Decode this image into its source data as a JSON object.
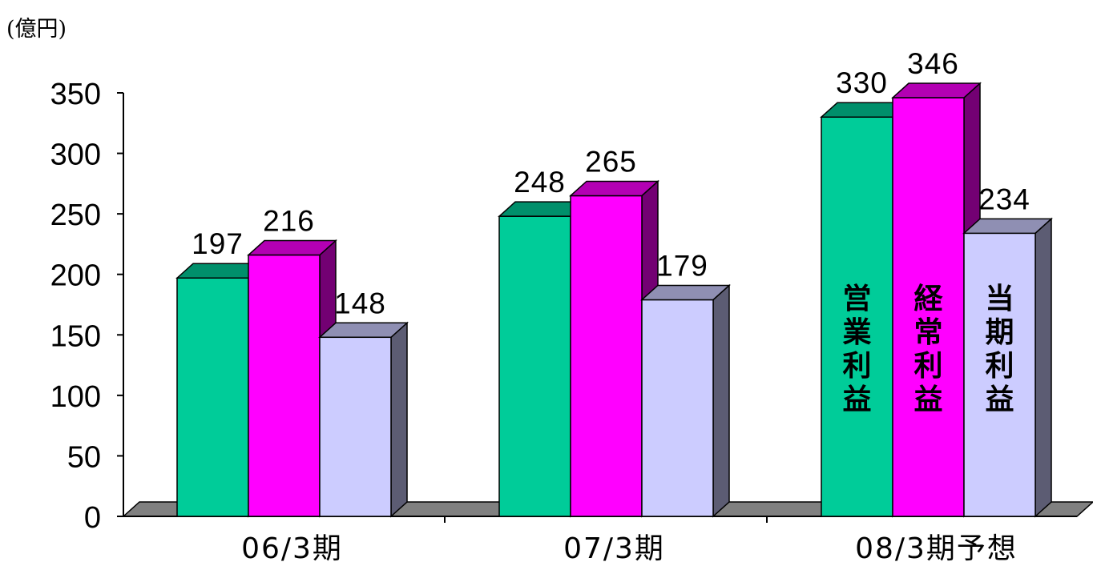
{
  "chart_data": {
    "type": "bar",
    "unit_label": "(億円)",
    "categories": [
      "06/3期",
      "07/3期",
      "08/3期予想"
    ],
    "series": [
      {
        "name": "営業利益",
        "values": [
          197,
          248,
          330
        ],
        "color": "#00CC99"
      },
      {
        "name": "経常利益",
        "values": [
          216,
          265,
          346
        ],
        "color": "#FF00FF"
      },
      {
        "name": "当期利益",
        "values": [
          148,
          179,
          234
        ],
        "color": "#CCCCFF"
      }
    ],
    "ylim": [
      0,
      350
    ],
    "yticks": [
      0,
      50,
      100,
      150,
      200,
      250,
      300,
      350
    ],
    "three_d": true,
    "grid": false,
    "legend": "inside-last-bars"
  }
}
